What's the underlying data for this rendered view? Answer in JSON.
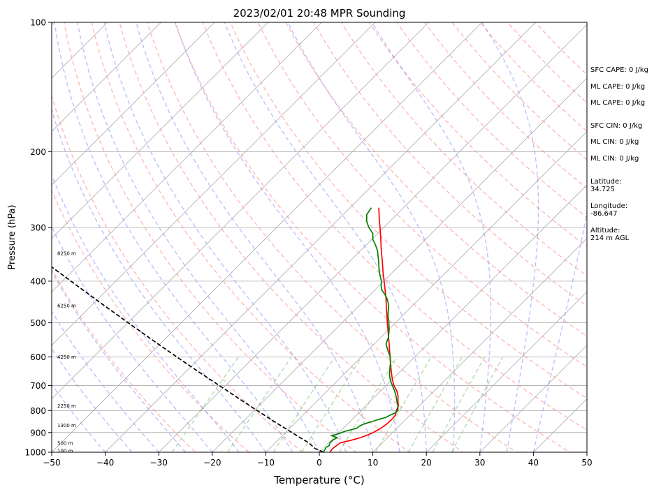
{
  "chart_data": {
    "type": "line",
    "title": "2023/02/01 20:48 MPR Sounding",
    "xlabel": "Temperature (°C)",
    "ylabel": "Pressure (hPa)",
    "xlim": [
      -50,
      50
    ],
    "ylim": [
      1000,
      100
    ],
    "y_scale": "log",
    "grid": true,
    "x_ticks": [
      -50,
      -40,
      -30,
      -20,
      -10,
      0,
      10,
      20,
      30,
      40,
      50
    ],
    "x_tick_labels": [
      "−50",
      "−40",
      "−30",
      "−20",
      "−10",
      "0",
      "10",
      "20",
      "30",
      "40",
      "50"
    ],
    "y_ticks": [
      1000,
      900,
      800,
      700,
      600,
      500,
      400,
      300,
      200,
      100
    ],
    "y_tick_labels": [
      "1000",
      "900",
      "800",
      "700",
      "600",
      "500",
      "400",
      "300",
      "200",
      "100"
    ],
    "height_labels": [
      {
        "p": 995,
        "text": "100 m"
      },
      {
        "p": 955,
        "text": "500 m"
      },
      {
        "p": 868,
        "text": "1300 m"
      },
      {
        "p": 782,
        "text": "2250 m"
      },
      {
        "p": 602,
        "text": "4250 m"
      },
      {
        "p": 457,
        "text": "6250 m"
      },
      {
        "p": 345,
        "text": "8250 m"
      }
    ],
    "series": [
      {
        "role": "temperature",
        "color": "#ff0000",
        "p": [
          1000,
          985,
          970,
          950,
          940,
          925,
          910,
          900,
          880,
          860,
          840,
          820,
          800,
          780,
          760,
          740,
          720,
          700,
          680,
          650,
          620,
          600,
          580,
          560,
          540,
          520,
          500,
          480,
          460,
          440,
          420,
          400,
          380,
          360,
          340,
          320,
          300,
          290,
          280,
          270
        ],
        "t": [
          2.0,
          1.8,
          1.9,
          2.2,
          3.5,
          5.0,
          5.9,
          6.4,
          7.0,
          7.3,
          7.4,
          7.3,
          6.6,
          6.1,
          5.1,
          4.2,
          3.0,
          1.5,
          0.2,
          -1.6,
          -3.4,
          -4.6,
          -5.9,
          -7.2,
          -8.6,
          -10.0,
          -11.5,
          -13.0,
          -14.6,
          -16.2,
          -18.0,
          -19.9,
          -21.9,
          -23.9,
          -26.1,
          -28.3,
          -30.7,
          -32.0,
          -33.3,
          -34.6
        ]
      },
      {
        "role": "dewpoint",
        "color": "#008000",
        "p": [
          1000,
          990,
          975,
          965,
          950,
          935,
          925,
          915,
          905,
          895,
          880,
          870,
          860,
          850,
          840,
          830,
          820,
          810,
          800,
          780,
          760,
          740,
          720,
          700,
          680,
          660,
          640,
          620,
          600,
          580,
          560,
          540,
          520,
          500,
          480,
          460,
          450,
          440,
          430,
          420,
          410,
          400,
          380,
          360,
          340,
          330,
          320,
          310,
          300,
          290,
          280,
          270
        ],
        "t": [
          0.8,
          0.6,
          0.4,
          0.6,
          0.2,
          0.3,
          0.6,
          -0.8,
          0.2,
          0.8,
          2.5,
          2.6,
          3.0,
          4.0,
          4.8,
          5.9,
          6.3,
          6.8,
          6.9,
          6.0,
          4.9,
          3.8,
          2.6,
          1.2,
          -0.2,
          -1.4,
          -2.4,
          -3.4,
          -4.6,
          -6.2,
          -7.8,
          -8.6,
          -9.8,
          -11.2,
          -12.8,
          -14.2,
          -15.0,
          -16.0,
          -17.2,
          -18.6,
          -19.6,
          -20.4,
          -22.6,
          -24.6,
          -26.8,
          -28.2,
          -29.8,
          -30.9,
          -32.8,
          -34.4,
          -35.6,
          -36.0
        ]
      },
      {
        "role": "parcel",
        "color": "#000000",
        "style": "dashed",
        "p": [
          1000,
          980,
          950,
          925,
          900,
          850,
          800,
          750,
          700,
          650,
          600,
          550,
          500,
          450,
          400,
          350,
          300,
          250,
          200,
          150,
          100
        ],
        "t": [
          0.8,
          -1.5,
          -3.8,
          -6.3,
          -8.8,
          -14.0,
          -19.4,
          -25.1,
          -31.1,
          -37.6,
          -44.5,
          -51.9,
          -59.9,
          -68.7,
          -78.4,
          -89.4,
          -102.0,
          -117.0,
          -135.0,
          -158.0,
          -190.0
        ]
      }
    ],
    "skew_deg": 45,
    "annotations": [
      "SFC CAPE: 0 J/kg",
      "ML CAPE: 0 J/kg",
      "ML CAPE: 0 J/kg",
      "SFC CIN: 0 J/kg",
      "ML CIN: 0 J/kg",
      "ML CIN: 0 J/kg",
      "Latitude:\n34.725",
      "Longitude:\n-86.647",
      "Altitude:\n214 m AGL"
    ],
    "reference_lines": {
      "isotherm_color": "#aaaaaa",
      "dry_adiabat_color": "#ff8080",
      "moist_adiabat_color": "#8080ff",
      "mixing_ratio_color": "#66bb66"
    }
  }
}
